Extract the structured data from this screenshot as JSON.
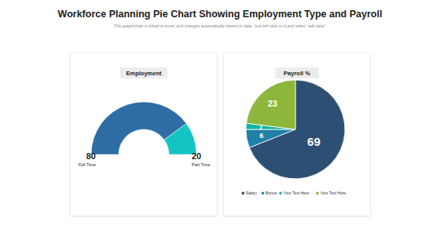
{
  "title": "Workforce Planning Pie Chart Showing Employment Type and Payroll",
  "subtitle": "This graph/chart is linked to excel, and changes automatically based on data. Just left click on it and select “edit data”.",
  "chart_data": [
    {
      "type": "half_donut",
      "title": "Employment",
      "categories": [
        "Full Time",
        "Part Time"
      ],
      "values": [
        80,
        20
      ],
      "colors": [
        "#2e6da4",
        "#14c4c4"
      ],
      "data_labels": true
    },
    {
      "type": "pie",
      "title": "Payroll %",
      "categories": [
        "Salary",
        "Bonus",
        "Your Text Here",
        "Your Text Here"
      ],
      "values": [
        69,
        6,
        2,
        23
      ],
      "colors": [
        "#2d4f73",
        "#1f80a8",
        "#12b59f",
        "#8cb63c"
      ],
      "data_labels": true,
      "legend": "bottom"
    }
  ]
}
